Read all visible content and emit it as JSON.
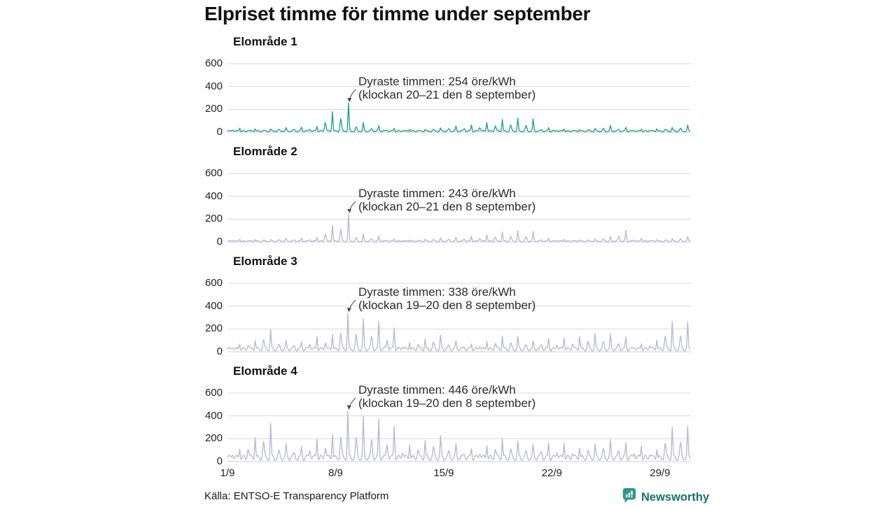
{
  "page": {
    "title": "Elpriset timme för timme under september",
    "source": "Källa: ENTSO-E Transparency Platform",
    "brand": "Newsworthy"
  },
  "colors": {
    "highlight_line": "#1a9c8c",
    "default_line": "#b6b6cf",
    "gridline": "#d9d9d9",
    "zero_line": "#cfcfcf",
    "axis_text": "#222222",
    "annotation_text": "#2b2b2b",
    "arrow": "#444444",
    "brand_teal": "#2f968b",
    "brand_text": "#16736b",
    "background": "#ffffff"
  },
  "chart_data": {
    "type": "line",
    "unit": "öre/kWh",
    "resolution": "hourly",
    "days_in_month": 30,
    "x_ticks": [
      "1/9",
      "8/9",
      "15/9",
      "22/9",
      "29/9"
    ],
    "x_tick_days": [
      1,
      8,
      15,
      22,
      29
    ],
    "y_ticks": [
      600,
      400,
      200,
      0
    ],
    "ylim": [
      0,
      600
    ],
    "grid": true,
    "legend": "none",
    "charts": [
      {
        "title": "Elområde 1",
        "color": "#1a9c8c",
        "annotation_line1": "Dyraste timmen: 254 öre/kWh",
        "annotation_line2": "(klockan 20–21 den 8 september)",
        "max_value": 254,
        "max_day": 8,
        "max_hour": 20,
        "base_level": 14,
        "daily_peaks": [
          45,
          38,
          32,
          40,
          48,
          60,
          190,
          254,
          85,
          60,
          42,
          35,
          32,
          38,
          55,
          70,
          95,
          120,
          125,
          115,
          45,
          38,
          32,
          36,
          58,
          46,
          36,
          40,
          46,
          62
        ]
      },
      {
        "title": "Elområde 2",
        "color": "#b6b6cf",
        "annotation_line1": "Dyraste timmen: 243 öre/kWh",
        "annotation_line2": "(klockan 20–21 den 8 september)",
        "max_value": 243,
        "max_day": 8,
        "max_hour": 20,
        "base_level": 11,
        "daily_peaks": [
          32,
          28,
          26,
          32,
          36,
          48,
          155,
          243,
          72,
          52,
          32,
          27,
          30,
          36,
          42,
          55,
          72,
          95,
          100,
          92,
          36,
          30,
          26,
          30,
          46,
          105,
          40,
          30,
          32,
          48
        ]
      },
      {
        "title": "Elområde 3",
        "color": "#b6b6cf",
        "annotation_line1": "Dyraste timmen: 338 öre/kWh",
        "annotation_line2": "(klockan 19–20 den 8 september)",
        "max_value": 338,
        "max_day": 8,
        "max_hour": 19,
        "base_level": 38,
        "daily_peaks": [
          95,
          125,
          205,
          100,
          95,
          160,
          180,
          338,
          290,
          270,
          230,
          110,
          130,
          150,
          100,
          85,
          120,
          160,
          140,
          95,
          130,
          150,
          160,
          170,
          155,
          140,
          95,
          130,
          280,
          260
        ]
      },
      {
        "title": "Elområde 4",
        "color": "#b6b6cf",
        "annotation_line1": "Dyraste timmen: 446 öre/kWh",
        "annotation_line2": "(klockan 19–20 den 8 september)",
        "max_value": 446,
        "max_day": 8,
        "max_hour": 19,
        "base_level": 55,
        "daily_peaks": [
          150,
          250,
          350,
          160,
          140,
          230,
          280,
          446,
          400,
          380,
          340,
          190,
          210,
          230,
          160,
          140,
          180,
          230,
          190,
          150,
          180,
          200,
          155,
          170,
          190,
          180,
          170,
          145,
          320,
          310
        ]
      }
    ]
  }
}
